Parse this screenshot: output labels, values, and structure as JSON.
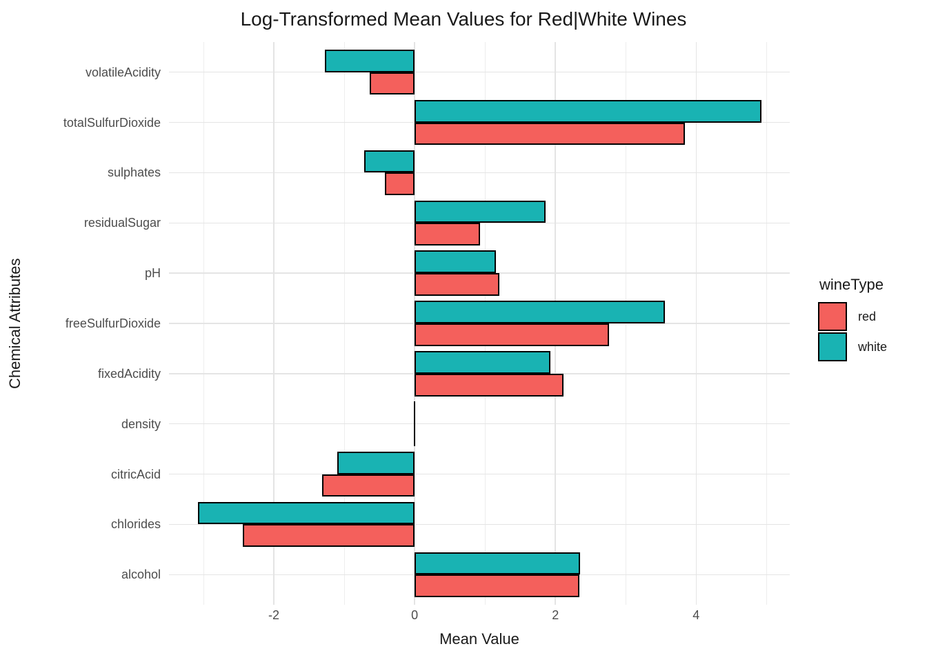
{
  "title": "Log-Transformed Mean Values for Red|White Wines",
  "legend": {
    "title": "wineType",
    "items": [
      {
        "label": "red",
        "color": "#f4605c"
      },
      {
        "label": "white",
        "color": "#19b3b3"
      }
    ]
  },
  "chart_data": {
    "type": "bar",
    "orientation": "horizontal",
    "title": "Log-Transformed Mean Values for Red|White Wines",
    "xlabel": "Mean Value",
    "ylabel": "Chemical Attributes",
    "legend_title": "wineType",
    "legend_position": "right",
    "grid": true,
    "categories": [
      "volatileAcidity",
      "totalSulfurDioxide",
      "sulphates",
      "residualSugar",
      "pH",
      "freeSulfurDioxide",
      "fixedAcidity",
      "density",
      "citricAcid",
      "chlorides",
      "alcohol"
    ],
    "series": [
      {
        "name": "red",
        "color": "#f4605c",
        "values": [
          -0.64,
          3.84,
          -0.42,
          0.93,
          1.2,
          2.76,
          2.12,
          -0.003,
          -1.31,
          -2.44,
          2.34
        ]
      },
      {
        "name": "white",
        "color": "#19b3b3",
        "values": [
          -1.28,
          4.93,
          -0.72,
          1.86,
          1.16,
          3.56,
          1.93,
          -0.006,
          -1.1,
          -3.08,
          2.35
        ]
      }
    ],
    "x_ticks": [
      -2,
      0,
      2,
      4
    ],
    "x_minor_ticks": [
      -3,
      -1,
      1,
      3,
      5
    ],
    "xlim": [
      -3.49,
      5.33
    ],
    "grid_color_major": "#e4e4e4",
    "grid_color_minor": "#ededed"
  }
}
